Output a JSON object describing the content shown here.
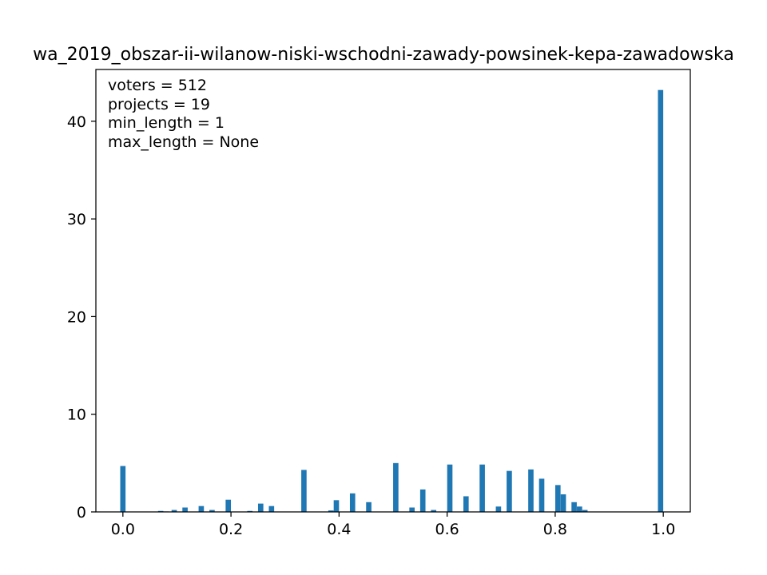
{
  "chart_data": {
    "type": "bar",
    "title": "wa_2019_obszar-ii-wilanow-niski-wschodni-zawady-powsinek-kepa-zawadowska",
    "xlabel": "",
    "ylabel": "",
    "xlim": [
      -0.05,
      1.05
    ],
    "ylim": [
      0,
      45.3
    ],
    "xticks": [
      0.0,
      0.2,
      0.4,
      0.6,
      0.8,
      1.0
    ],
    "xtick_labels": [
      "0.0",
      "0.2",
      "0.4",
      "0.6",
      "0.8",
      "1.0"
    ],
    "yticks": [
      0,
      10,
      20,
      30,
      40
    ],
    "ytick_labels": [
      "0",
      "10",
      "20",
      "30",
      "40"
    ],
    "annotation_lines": [
      "voters = 512",
      "projects = 19",
      "min_length = 1",
      "max_length = None"
    ],
    "bar_width": 0.01,
    "bars": [
      {
        "x": 0.0,
        "value": 4.7
      },
      {
        "x": 0.07,
        "value": 0.1
      },
      {
        "x": 0.08,
        "value": 0.05
      },
      {
        "x": 0.095,
        "value": 0.2
      },
      {
        "x": 0.115,
        "value": 0.45
      },
      {
        "x": 0.145,
        "value": 0.6
      },
      {
        "x": 0.165,
        "value": 0.2
      },
      {
        "x": 0.195,
        "value": 1.25
      },
      {
        "x": 0.235,
        "value": 0.1
      },
      {
        "x": 0.255,
        "value": 0.85
      },
      {
        "x": 0.275,
        "value": 0.6
      },
      {
        "x": 0.335,
        "value": 4.3
      },
      {
        "x": 0.385,
        "value": 0.15
      },
      {
        "x": 0.395,
        "value": 1.2
      },
      {
        "x": 0.425,
        "value": 1.9
      },
      {
        "x": 0.455,
        "value": 1.0
      },
      {
        "x": 0.505,
        "value": 5.0
      },
      {
        "x": 0.535,
        "value": 0.45
      },
      {
        "x": 0.555,
        "value": 2.3
      },
      {
        "x": 0.575,
        "value": 0.2
      },
      {
        "x": 0.605,
        "value": 4.85
      },
      {
        "x": 0.635,
        "value": 1.6
      },
      {
        "x": 0.665,
        "value": 4.85
      },
      {
        "x": 0.695,
        "value": 0.55
      },
      {
        "x": 0.715,
        "value": 4.2
      },
      {
        "x": 0.755,
        "value": 4.35
      },
      {
        "x": 0.775,
        "value": 3.4
      },
      {
        "x": 0.805,
        "value": 2.75
      },
      {
        "x": 0.815,
        "value": 1.8
      },
      {
        "x": 0.835,
        "value": 1.0
      },
      {
        "x": 0.845,
        "value": 0.55
      },
      {
        "x": 0.855,
        "value": 0.2
      },
      {
        "x": 0.995,
        "value": 43.2
      }
    ],
    "bar_color": "#1f77b4",
    "grid": false,
    "legend": false
  }
}
